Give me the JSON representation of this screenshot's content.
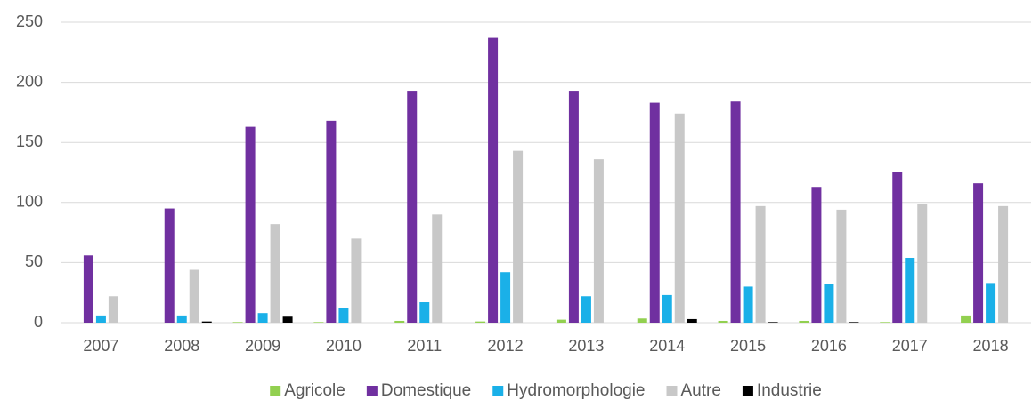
{
  "chart_data": {
    "type": "bar",
    "categories": [
      "2007",
      "2008",
      "2009",
      "2010",
      "2011",
      "2012",
      "2013",
      "2014",
      "2015",
      "2016",
      "2017",
      "2018"
    ],
    "series": [
      {
        "name": "Agricole",
        "color": "#92d050",
        "values": [
          0,
          0,
          0.5,
          0.5,
          1.5,
          1,
          2.5,
          3.5,
          1.5,
          1.5,
          0.5,
          6
        ]
      },
      {
        "name": "Domestique",
        "color": "#7030a0",
        "values": [
          56,
          95,
          163,
          168,
          193,
          237,
          193,
          183,
          184,
          113,
          125,
          116
        ]
      },
      {
        "name": "Hydromorphologie",
        "color": "#1ab0e8",
        "values": [
          6,
          6,
          8,
          12,
          17,
          42,
          22,
          23,
          30,
          32,
          54,
          33
        ]
      },
      {
        "name": "Autre",
        "color": "#c8c8c8",
        "values": [
          22,
          44,
          82,
          70,
          90,
          143,
          136,
          174,
          97,
          94,
          99,
          97
        ]
      },
      {
        "name": "Industrie",
        "color": "#000000",
        "values": [
          0,
          1,
          5,
          0,
          0,
          0,
          0,
          3,
          0.5,
          0.5,
          0,
          0
        ]
      }
    ],
    "ylim": [
      0,
      250
    ],
    "yticks": [
      0,
      50,
      100,
      150,
      200,
      250
    ],
    "grid": true,
    "legend": "bottom"
  }
}
